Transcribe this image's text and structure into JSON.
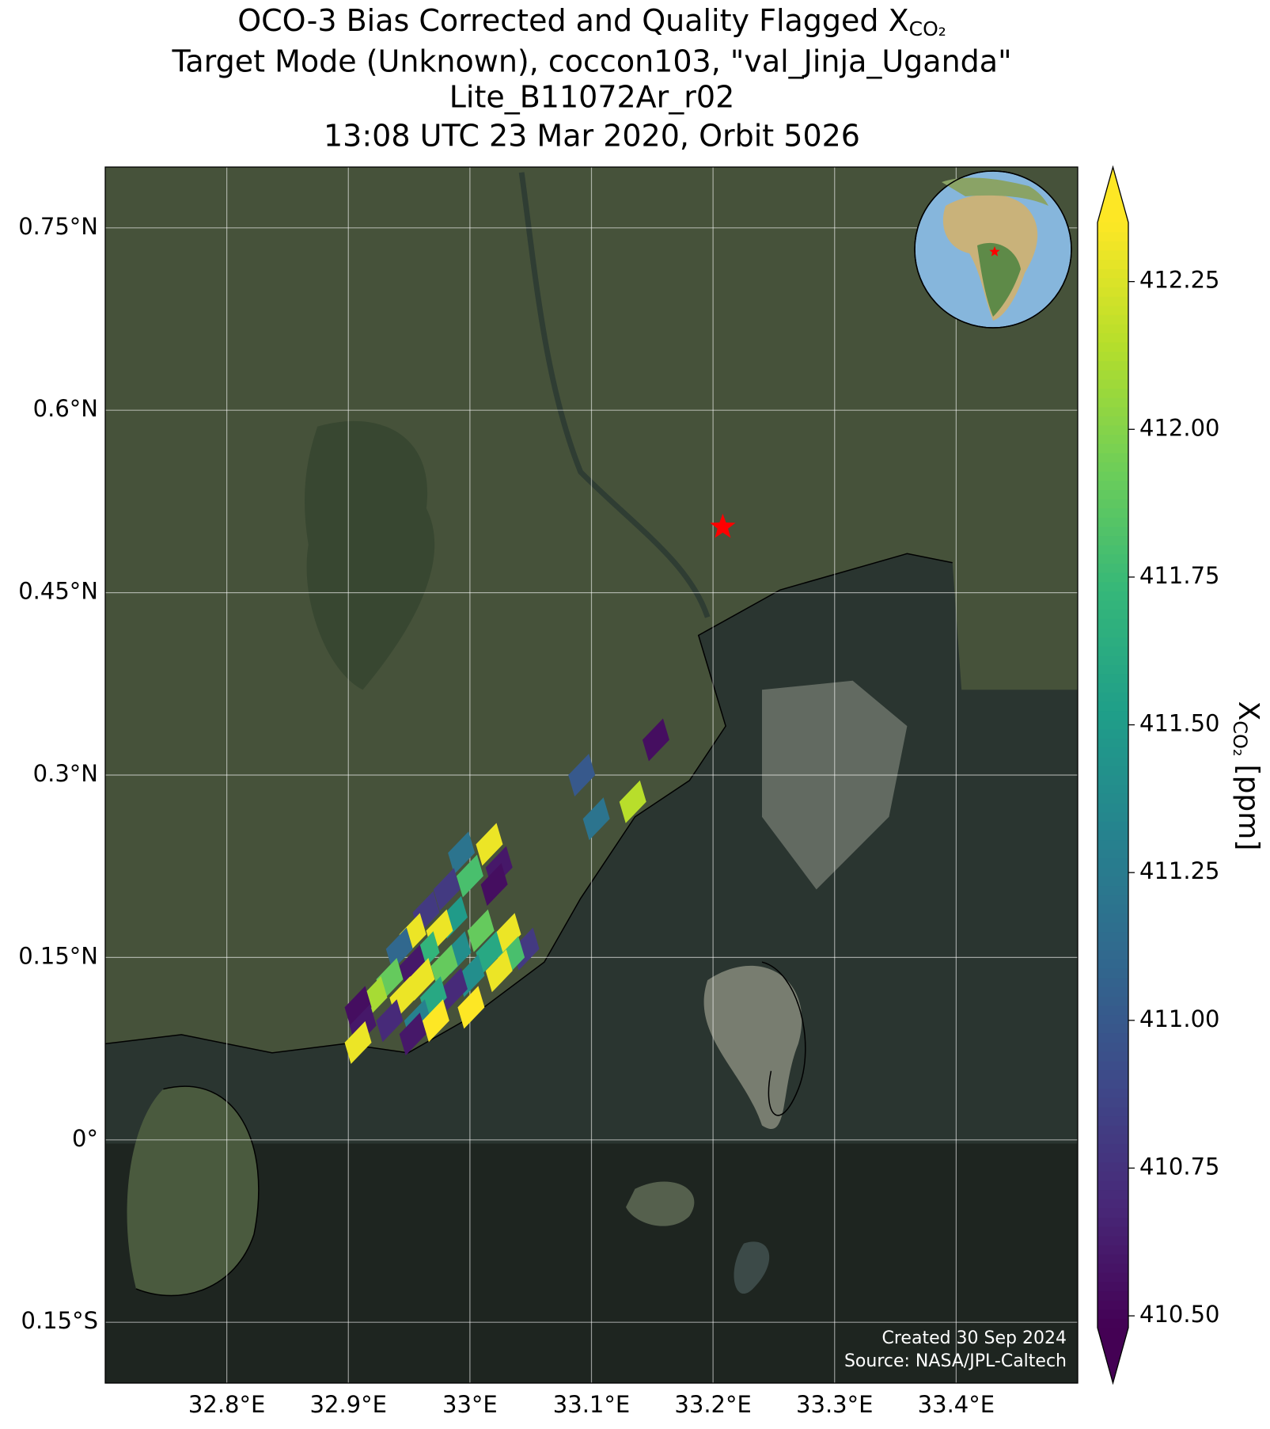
{
  "chart_data": {
    "type": "scatter",
    "title": [
      "OCO-3 Bias Corrected and Quality Flagged X",
      "Target Mode (Unknown), coccon103, \"val_Jinja_Uganda\"",
      "Lite_B11072Ar_r02",
      "13:08 UTC 23 Mar 2020, Orbit 5026"
    ],
    "title_subscript": "CO₂",
    "colorbar_label": {
      "base": "X",
      "sub": "CO₂",
      "unit": "[ppm]"
    },
    "credits": [
      "Created 30 Sep 2024",
      "Source: NASA/JPL-Caltech"
    ],
    "colormap": "viridis",
    "clim": [
      410.48,
      412.35
    ],
    "cticks": [
      {
        "value": 410.5,
        "label": "410.50"
      },
      410.75,
      {
        "value": 411,
        "label": "411.00"
      },
      411.25,
      {
        "value": 411.5,
        "label": "411.50"
      },
      411.75,
      {
        "value": 412,
        "label": "412.00"
      },
      412.25
    ],
    "xlim": [
      32.7,
      33.5
    ],
    "ylim": [
      -0.2,
      0.8
    ],
    "xticks": [
      {
        "value": 32.8,
        "label": "32.8°E"
      },
      {
        "value": 32.9,
        "label": "32.9°E"
      },
      {
        "value": 33.0,
        "label": "33°E"
      },
      {
        "value": 33.1,
        "label": "33.1°E"
      },
      {
        "value": 33.2,
        "label": "33.2°E"
      },
      {
        "value": 33.3,
        "label": "33.3°E"
      },
      {
        "value": 33.4,
        "label": "33.4°E"
      }
    ],
    "yticks": [
      {
        "value": 0.75,
        "label": "0.75°N"
      },
      {
        "value": 0.6,
        "label": "0.6°N"
      },
      {
        "value": 0.45,
        "label": "0.45°N"
      },
      {
        "value": 0.3,
        "label": "0.3°N"
      },
      {
        "value": 0.15,
        "label": "0.15°N"
      },
      {
        "value": 0,
        "label": "0°"
      },
      {
        "value": -0.15,
        "label": "0.15°S"
      }
    ],
    "grid": true,
    "site": {
      "x": 33.208,
      "y": 0.504,
      "color": "#ff0000"
    },
    "x": [
      33.153,
      33.092,
      33.104,
      33.134,
      33.016,
      32.993,
      33.024,
      33.0,
      32.981,
      33.02,
      32.964,
      32.987,
      32.953,
      32.975,
      33.009,
      33.031,
      33.046,
      32.942,
      32.964,
      32.99,
      33.016,
      33.034,
      32.953,
      32.979,
      33.001,
      33.024,
      32.934,
      32.96,
      32.987,
      32.921,
      32.945,
      32.97,
      32.908,
      33.001,
      32.934,
      32.957,
      32.972,
      32.912,
      32.953,
      32.908
    ],
    "y": [
      0.329,
      0.3,
      0.264,
      0.278,
      0.243,
      0.236,
      0.224,
      0.217,
      0.206,
      0.21,
      0.187,
      0.183,
      0.169,
      0.172,
      0.172,
      0.169,
      0.157,
      0.157,
      0.154,
      0.154,
      0.154,
      0.15,
      0.143,
      0.143,
      0.135,
      0.139,
      0.132,
      0.132,
      0.124,
      0.117,
      0.117,
      0.117,
      0.109,
      0.109,
      0.098,
      0.098,
      0.098,
      0.094,
      0.087,
      0.08
    ],
    "values": [
      410.55,
      411.0,
      411.2,
      412.15,
      412.3,
      411.2,
      410.6,
      411.8,
      410.8,
      410.55,
      410.8,
      411.5,
      412.3,
      412.3,
      411.9,
      412.3,
      410.8,
      411.1,
      411.7,
      411.4,
      411.6,
      411.8,
      410.6,
      411.9,
      411.4,
      412.3,
      411.9,
      412.3,
      410.7,
      412.1,
      412.3,
      411.6,
      410.55,
      412.35,
      410.7,
      411.3,
      412.35,
      410.6,
      410.6,
      412.3
    ]
  }
}
